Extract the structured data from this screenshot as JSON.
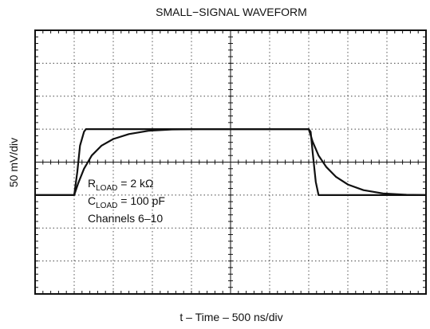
{
  "chart_data": {
    "type": "line",
    "title": "SMALL−SIGNAL WAVEFORM",
    "xlabel": "t – Time – 500 ns/div",
    "ylabel": "50 mV/div",
    "x_unit": "div",
    "y_unit": "div",
    "xlim": [
      0,
      10
    ],
    "ylim": [
      -4,
      4
    ],
    "grid": true,
    "grid_style": "dotted",
    "center_axes_with_minor_ticks": true,
    "annotation": {
      "r_main": "R",
      "r_sub": "LOAD",
      "r_value": " = 2 kΩ",
      "c_main": "C",
      "c_sub": "LOAD",
      "c_value": " = 100 pF",
      "channels": "Channels 6–10"
    },
    "series": [
      {
        "role": "input",
        "x": [
          0,
          1.0,
          1.08,
          1.15,
          1.25,
          1.3,
          7.0,
          7.05,
          7.1,
          7.18,
          7.25,
          10
        ],
        "y": [
          -1,
          -1,
          -0.3,
          0.5,
          0.92,
          1.0,
          1.0,
          0.92,
          0.3,
          -0.6,
          -1.0,
          -1
        ]
      },
      {
        "role": "output",
        "x": [
          0,
          1.0,
          1.1,
          1.25,
          1.45,
          1.7,
          2.0,
          2.4,
          2.9,
          3.5,
          4.2,
          7.0,
          7.1,
          7.25,
          7.45,
          7.7,
          8.0,
          8.4,
          8.9,
          9.5,
          10
        ],
        "y": [
          -1,
          -1,
          -0.65,
          -0.2,
          0.2,
          0.5,
          0.7,
          0.85,
          0.95,
          0.99,
          1.0,
          1.0,
          0.62,
          0.2,
          -0.15,
          -0.45,
          -0.68,
          -0.85,
          -0.95,
          -0.99,
          -1.0
        ]
      }
    ]
  }
}
